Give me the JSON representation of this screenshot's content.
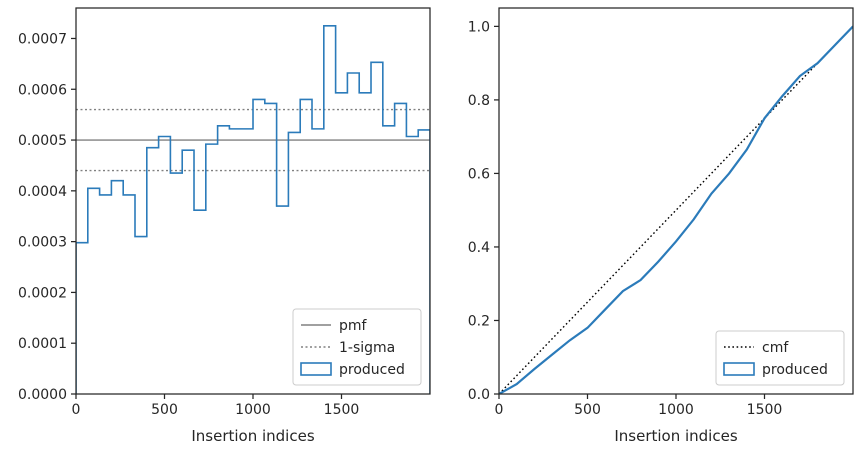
{
  "colors": {
    "produced": "#2b7bba",
    "pmf": "#808080",
    "sigma": "#808080",
    "cmf": "#000000",
    "axis": "#262626"
  },
  "chart_data": [
    {
      "type": "step-histogram",
      "xlabel": "Insertion indices",
      "ylabel": "",
      "xlim": [
        0,
        2000
      ],
      "ylim": [
        0,
        0.00076
      ],
      "xticks": [
        0,
        500,
        1000,
        1500
      ],
      "xtick_labels": [
        "0",
        "500",
        "1000",
        "1500"
      ],
      "yticks": [
        0,
        0.0001,
        0.0002,
        0.0003,
        0.0004,
        0.0005,
        0.0006,
        0.0007
      ],
      "ytick_labels": [
        "0.0000",
        "0.0001",
        "0.0002",
        "0.0003",
        "0.0004",
        "0.0005",
        "0.0006",
        "0.0007"
      ],
      "bin_width": 66.67,
      "produced": [
        0.000298,
        0.000405,
        0.000392,
        0.00042,
        0.000392,
        0.00031,
        0.000485,
        0.000507,
        0.000435,
        0.00048,
        0.000362,
        0.000492,
        0.000528,
        0.000522,
        0.000522,
        0.00058,
        0.000572,
        0.00037,
        0.000515,
        0.00058,
        0.000522,
        0.000725,
        0.000593,
        0.000632,
        0.000593,
        0.000653,
        0.000528,
        0.000572,
        0.000507,
        0.00052
      ],
      "pmf": 0.0005,
      "sigma_lower": 0.00044,
      "sigma_upper": 0.00056,
      "legend": [
        "pmf",
        "1-sigma",
        "produced"
      ],
      "legend_position": "lower-right"
    },
    {
      "type": "cumulative-step",
      "xlabel": "Insertion indices",
      "ylabel": "",
      "xlim": [
        0,
        2000
      ],
      "ylim": [
        0,
        1.05
      ],
      "xticks": [
        0,
        500,
        1000,
        1500
      ],
      "xtick_labels": [
        "0",
        "500",
        "1000",
        "1500"
      ],
      "yticks": [
        0,
        0.2,
        0.4,
        0.6,
        0.8,
        1.0
      ],
      "ytick_labels": [
        "0.0",
        "0.2",
        "0.4",
        "0.6",
        "0.8",
        "1.0"
      ],
      "cmf": [
        [
          0,
          0
        ],
        [
          2000,
          1.0
        ]
      ],
      "produced": [
        [
          0,
          0
        ],
        [
          100,
          0.027
        ],
        [
          200,
          0.068
        ],
        [
          300,
          0.107
        ],
        [
          400,
          0.146
        ],
        [
          500,
          0.18
        ],
        [
          600,
          0.23
        ],
        [
          700,
          0.28
        ],
        [
          800,
          0.31
        ],
        [
          900,
          0.36
        ],
        [
          1000,
          0.415
        ],
        [
          1100,
          0.475
        ],
        [
          1200,
          0.545
        ],
        [
          1300,
          0.6
        ],
        [
          1400,
          0.665
        ],
        [
          1500,
          0.75
        ],
        [
          1600,
          0.81
        ],
        [
          1700,
          0.865
        ],
        [
          1800,
          0.9
        ],
        [
          1900,
          0.95
        ],
        [
          2000,
          1.0
        ]
      ],
      "legend": [
        "cmf",
        "produced"
      ],
      "legend_position": "lower-right"
    }
  ]
}
